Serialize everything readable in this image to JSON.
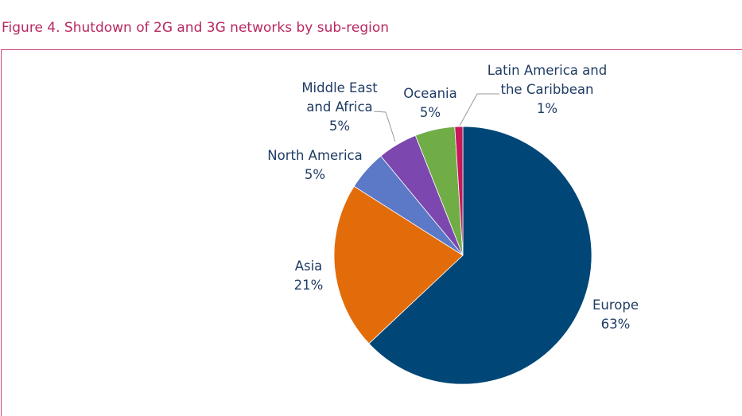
{
  "chart_data": {
    "type": "pie",
    "title": "Figure 4. Shutdown of 2G and 3G networks by sub-region",
    "categories": [
      "Europe",
      "Asia",
      "North America",
      "Middle East and Africa",
      "Oceania",
      "Latin America and the Caribbean"
    ],
    "values": [
      63,
      21,
      5,
      5,
      5,
      1
    ],
    "value_labels": [
      "63%",
      "21%",
      "5%",
      "5%",
      "5%",
      "1%"
    ],
    "colors": [
      "#004677",
      "#e36c0a",
      "#5b79c6",
      "#7c47ae",
      "#70ad47",
      "#c8185a"
    ]
  }
}
